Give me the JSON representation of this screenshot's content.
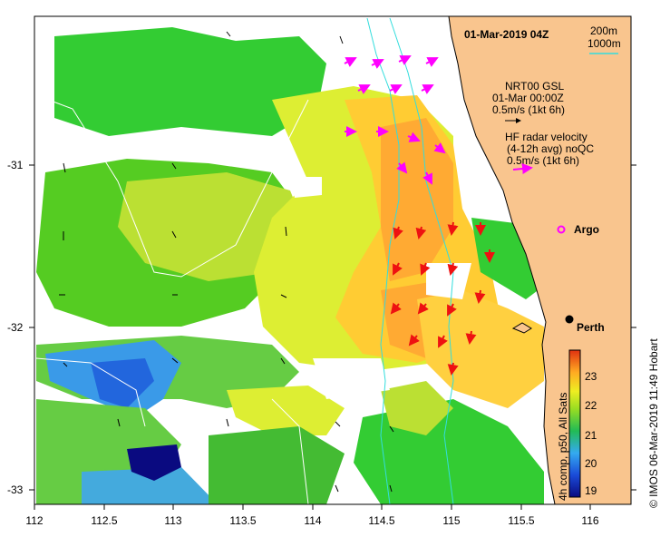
{
  "header": {
    "title": "01-Mar-2019 04Z",
    "isobath_1": "200m",
    "isobath_2": "1000m"
  },
  "legend": {
    "gsl_line1": "NRT00 GSL",
    "gsl_line2": "01-Mar 00:00Z",
    "gsl_line3": "0.5m/s (1kt 6h)",
    "hf_line1": "HF radar velocity",
    "hf_line2": "(4-12h avg) noQC",
    "hf_line3": "0.5m/s (1kt 6h)",
    "argo_label": "Argo"
  },
  "places": {
    "perth": "Perth"
  },
  "axes": {
    "x_ticks": [
      "112",
      "112.5",
      "113",
      "113.5",
      "114",
      "114.5",
      "115",
      "115.5",
      "116"
    ],
    "y_ticks": [
      "-31",
      "-32",
      "-33"
    ]
  },
  "colorbar": {
    "label": "4h comp, p50, All Sats",
    "ticks": [
      "19",
      "20",
      "21",
      "22",
      "23"
    ]
  },
  "credit": "© IMOS 06-Mar-2019 11:49 Hobart",
  "colors": {
    "land": "#f9c58e",
    "hf_radar": "#ff00ff",
    "argo": "#ff00ff",
    "gsl_arrow": "#000000",
    "isobath": "#33dddd"
  }
}
